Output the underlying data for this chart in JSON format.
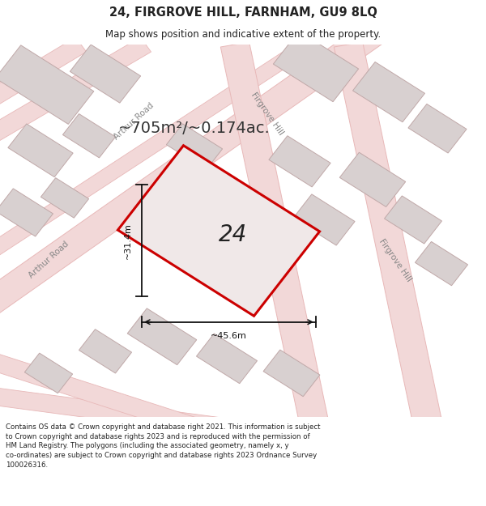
{
  "title": "24, FIRGROVE HILL, FARNHAM, GU9 8LQ",
  "subtitle": "Map shows position and indicative extent of the property.",
  "area_text": "~705m²/~0.174ac.",
  "property_number": "24",
  "dim_width": "~45.6m",
  "dim_height": "~31.4m",
  "footer_text": "Contains OS data © Crown copyright and database right 2021. This information is subject to Crown copyright and database rights 2023 and is reproduced with the permission of HM Land Registry. The polygons (including the associated geometry, namely x, y co-ordinates) are subject to Crown copyright and database rights 2023 Ordnance Survey 100026316.",
  "map_bg": "#f7f4f4",
  "road_fill": "#f2d8d8",
  "road_edge": "#e8b8b8",
  "building_fill": "#d8d0d0",
  "building_edge": "#c0a8a8",
  "property_fill": "#f0e8e8",
  "property_edge": "#cc0000",
  "footer_bg": "#ffffff",
  "title_bg": "#ffffff",
  "text_color": "#222222",
  "road_label_color": "#888888",
  "dim_color": "#111111",
  "area_text_color": "#333333"
}
